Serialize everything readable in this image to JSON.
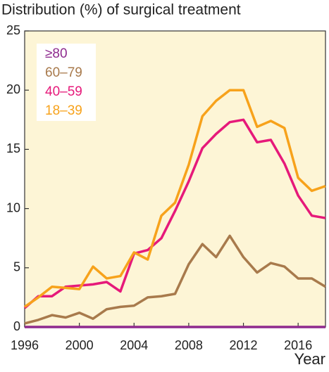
{
  "chart_data": {
    "type": "line",
    "title": "Distribution (%) of surgical treatment",
    "x_label": "Year",
    "x": [
      1996,
      1997,
      1998,
      1999,
      2000,
      2001,
      2002,
      2003,
      2004,
      2005,
      2006,
      2007,
      2008,
      2009,
      2010,
      2011,
      2012,
      2013,
      2014,
      2015,
      2016,
      2017,
      2018
    ],
    "series": [
      {
        "name": "≥80",
        "color": "#8e2a8e",
        "values": [
          0,
          0,
          0,
          0,
          0,
          0,
          0,
          0,
          0,
          0,
          0,
          0,
          0,
          0,
          0,
          0,
          0,
          0,
          0,
          0,
          0,
          0,
          0
        ]
      },
      {
        "name": "60–79",
        "color": "#a87a4c",
        "values": [
          0.3,
          0.6,
          1.0,
          0.8,
          1.2,
          0.7,
          1.5,
          1.7,
          1.8,
          2.5,
          2.6,
          2.8,
          5.3,
          7.0,
          5.9,
          7.7,
          5.9,
          4.6,
          5.4,
          5.1,
          4.1,
          4.1,
          3.4
        ]
      },
      {
        "name": "40–59",
        "color": "#e6197a",
        "values": [
          1.6,
          2.6,
          2.6,
          3.4,
          3.5,
          3.6,
          3.8,
          3.0,
          6.2,
          6.5,
          7.5,
          9.8,
          12.3,
          15.1,
          16.3,
          17.3,
          17.5,
          15.6,
          15.8,
          13.8,
          11.1,
          9.4,
          9.2
        ]
      },
      {
        "name": "18–39",
        "color": "#f7a21b",
        "values": [
          1.7,
          2.5,
          3.4,
          3.3,
          3.2,
          5.1,
          4.1,
          4.3,
          6.3,
          5.7,
          9.4,
          10.5,
          13.7,
          17.8,
          19.1,
          20.0,
          20.0,
          16.9,
          17.4,
          16.8,
          12.6,
          11.5,
          11.9
        ]
      }
    ],
    "xlim": [
      1996,
      2018
    ],
    "xticks": [
      1996,
      2000,
      2004,
      2008,
      2012,
      2016
    ],
    "ylim": [
      0,
      25
    ],
    "yticks": [
      0,
      5,
      10,
      15,
      20,
      25
    ],
    "legend": "upper left",
    "background": "#fdf5d6"
  }
}
